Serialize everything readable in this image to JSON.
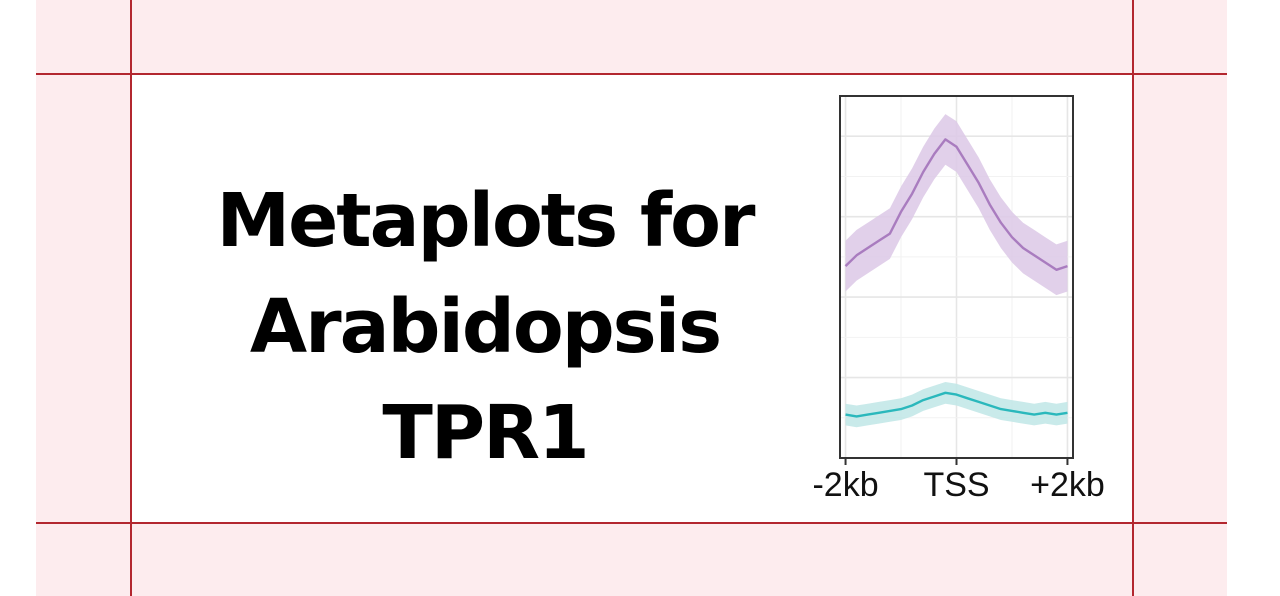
{
  "page": {
    "title_line1": "Metaplots for",
    "title_line2": "Arabidopsis TPR1"
  },
  "colors": {
    "page_bg": "#fdecee",
    "card_bg": "#ffffff",
    "guide_lines": "#b3272f",
    "series_purple": "#a97cbf",
    "band_purple": "#dcc8e6",
    "series_teal": "#2ab8bc",
    "band_teal": "#bfe6e6"
  },
  "chart_data": {
    "type": "line",
    "title": "",
    "xlabel": "",
    "ylabel": "",
    "x_ticks": [
      {
        "x": -2000,
        "label": "-2kb"
      },
      {
        "x": 0,
        "label": "TSS"
      },
      {
        "x": 2000,
        "label": "+2kb"
      }
    ],
    "xlim": [
      -2100,
      2100
    ],
    "ylim": [
      0,
      1
    ],
    "grid": true,
    "legend": "none",
    "series": [
      {
        "color": "#a97cbf",
        "band_color": "#dcc8e6",
        "x": [
          -2000,
          -1800,
          -1600,
          -1400,
          -1200,
          -1000,
          -800,
          -600,
          -400,
          -200,
          0,
          200,
          400,
          600,
          800,
          1000,
          1200,
          1400,
          1600,
          1800,
          2000
        ],
        "y": [
          0.53,
          0.56,
          0.58,
          0.6,
          0.62,
          0.68,
          0.73,
          0.79,
          0.84,
          0.88,
          0.86,
          0.81,
          0.76,
          0.7,
          0.65,
          0.61,
          0.58,
          0.56,
          0.54,
          0.52,
          0.53
        ],
        "band": 0.07
      },
      {
        "color": "#2ab8bc",
        "band_color": "#bfe6e6",
        "x": [
          -2000,
          -1800,
          -1600,
          -1400,
          -1200,
          -1000,
          -800,
          -600,
          -400,
          -200,
          0,
          200,
          400,
          600,
          800,
          1000,
          1200,
          1400,
          1600,
          1800,
          2000
        ],
        "y": [
          0.12,
          0.115,
          0.12,
          0.125,
          0.13,
          0.135,
          0.145,
          0.16,
          0.17,
          0.18,
          0.175,
          0.165,
          0.155,
          0.145,
          0.135,
          0.13,
          0.125,
          0.12,
          0.125,
          0.12,
          0.125
        ],
        "band": 0.03
      }
    ]
  }
}
